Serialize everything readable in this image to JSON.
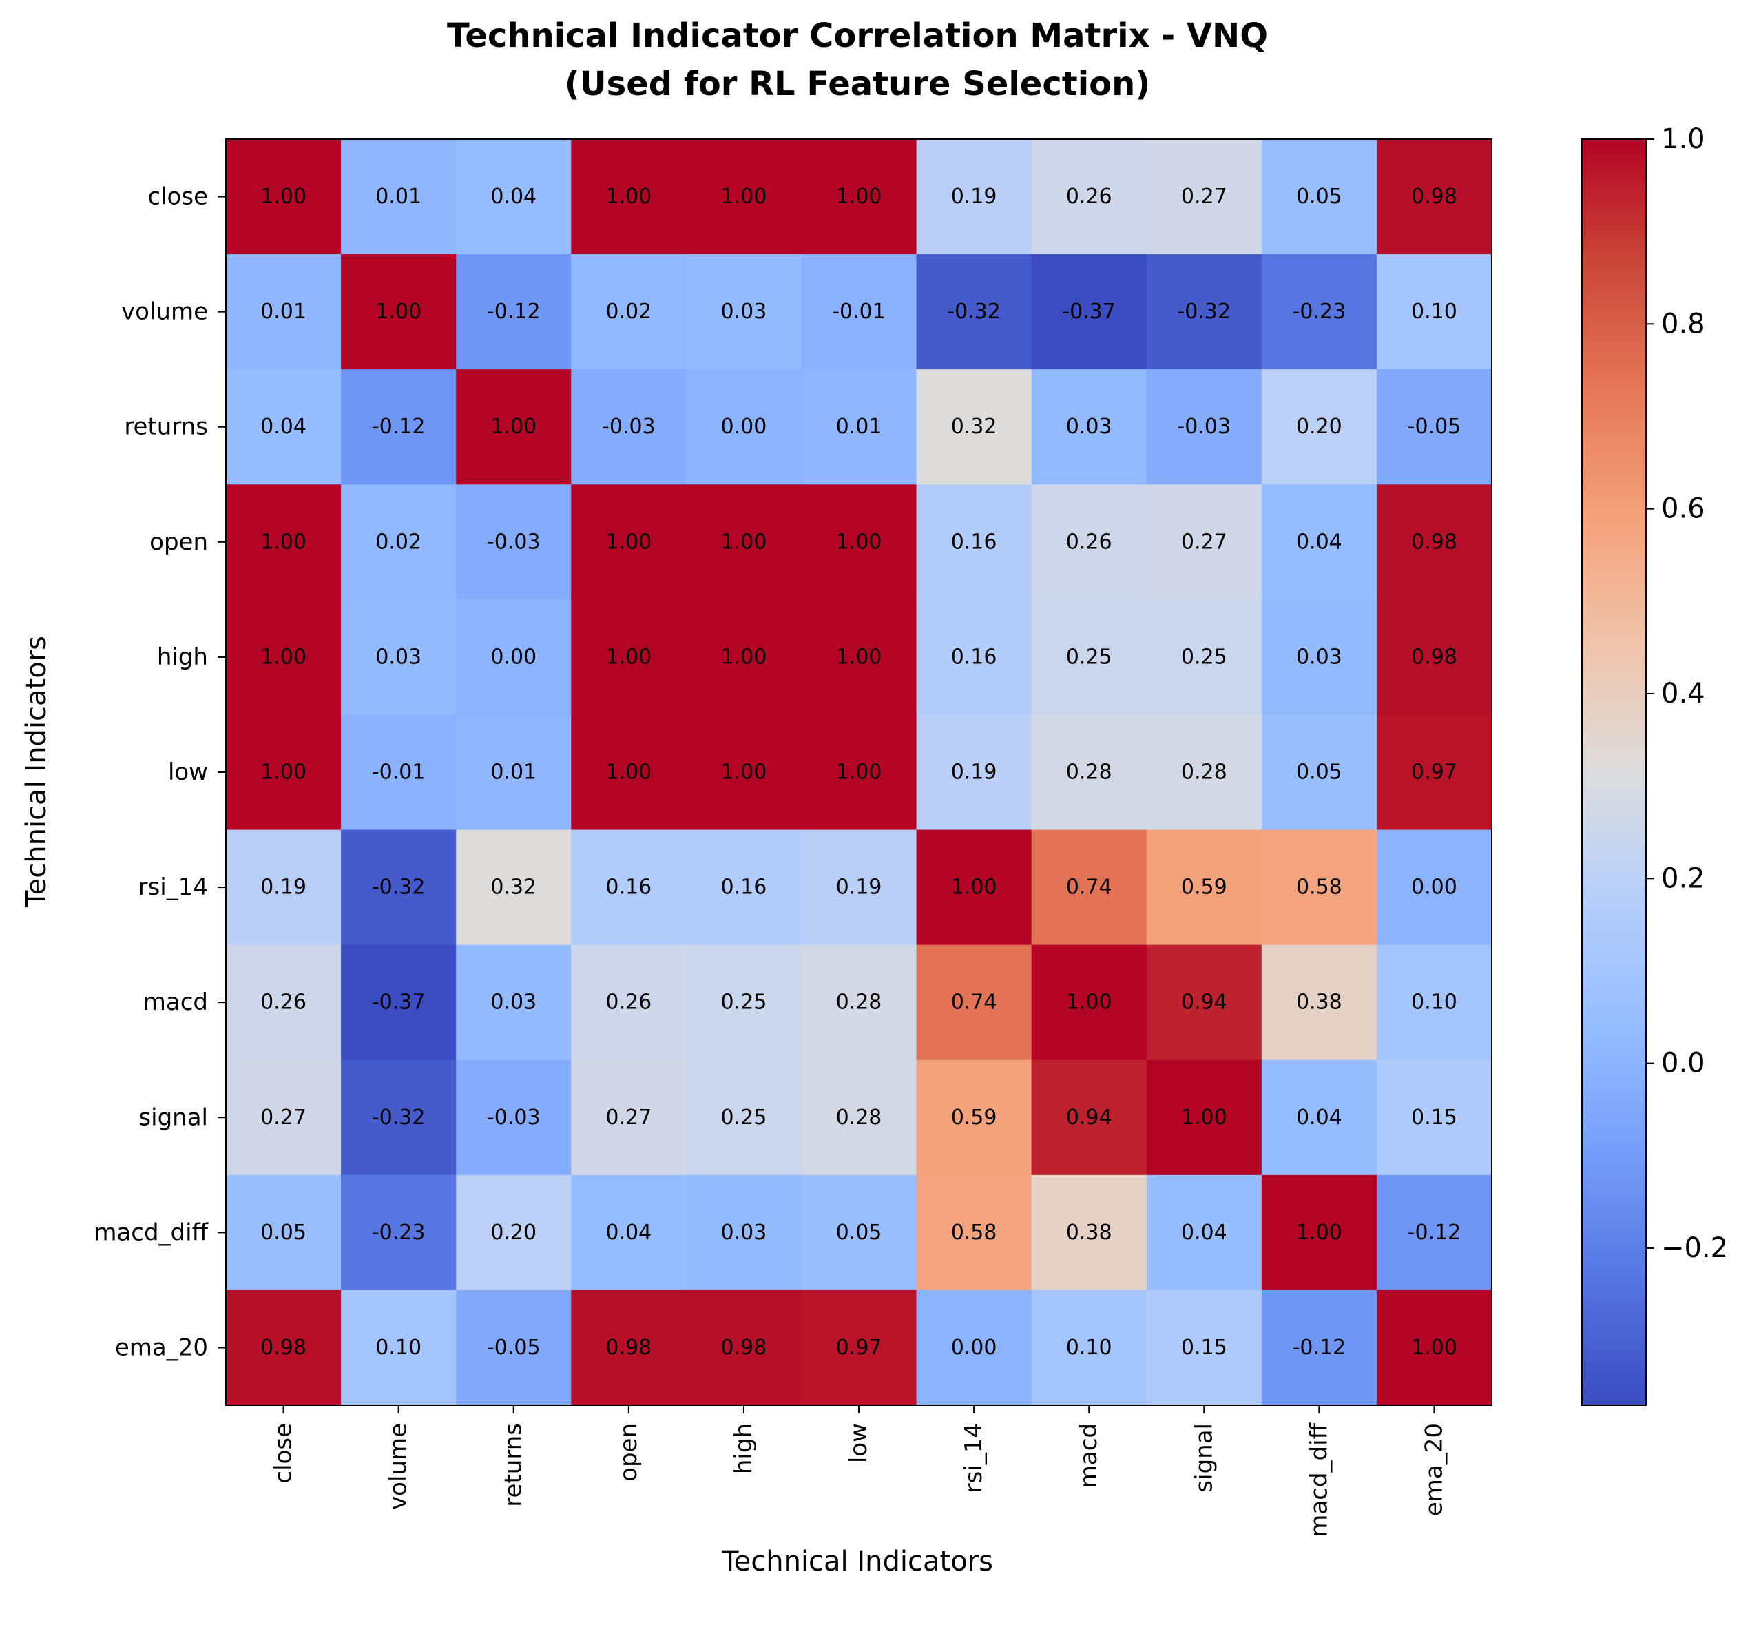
{
  "chart_data": {
    "type": "heatmap",
    "title": "Technical Indicator Correlation Matrix - VNQ",
    "subtitle": "(Used for RL Feature Selection)",
    "xlabel": "Technical Indicators",
    "ylabel": "Technical Indicators",
    "x_categories": [
      "close",
      "volume",
      "returns",
      "open",
      "high",
      "low",
      "rsi_14",
      "macd",
      "signal",
      "macd_diff",
      "ema_20"
    ],
    "y_categories": [
      "close",
      "volume",
      "returns",
      "open",
      "high",
      "low",
      "rsi_14",
      "macd",
      "signal",
      "macd_diff",
      "ema_20"
    ],
    "values": [
      [
        1.0,
        0.01,
        0.04,
        1.0,
        1.0,
        1.0,
        0.19,
        0.26,
        0.27,
        0.05,
        0.98
      ],
      [
        0.01,
        1.0,
        -0.12,
        0.02,
        0.03,
        -0.01,
        -0.32,
        -0.37,
        -0.32,
        -0.23,
        0.1
      ],
      [
        0.04,
        -0.12,
        1.0,
        -0.03,
        0.0,
        0.01,
        0.32,
        0.03,
        -0.03,
        0.2,
        -0.05
      ],
      [
        1.0,
        0.02,
        -0.03,
        1.0,
        1.0,
        1.0,
        0.16,
        0.26,
        0.27,
        0.04,
        0.98
      ],
      [
        1.0,
        0.03,
        0.0,
        1.0,
        1.0,
        1.0,
        0.16,
        0.25,
        0.25,
        0.03,
        0.98
      ],
      [
        1.0,
        -0.01,
        0.01,
        1.0,
        1.0,
        1.0,
        0.19,
        0.28,
        0.28,
        0.05,
        0.97
      ],
      [
        0.19,
        -0.32,
        0.32,
        0.16,
        0.16,
        0.19,
        1.0,
        0.74,
        0.59,
        0.58,
        0.0
      ],
      [
        0.26,
        -0.37,
        0.03,
        0.26,
        0.25,
        0.28,
        0.74,
        1.0,
        0.94,
        0.38,
        0.1
      ],
      [
        0.27,
        -0.32,
        -0.03,
        0.27,
        0.25,
        0.28,
        0.59,
        0.94,
        1.0,
        0.04,
        0.15
      ],
      [
        0.05,
        -0.23,
        0.2,
        0.04,
        0.03,
        0.05,
        0.58,
        0.38,
        0.04,
        1.0,
        -0.12
      ],
      [
        0.98,
        0.1,
        -0.05,
        0.98,
        0.98,
        0.97,
        0.0,
        0.1,
        0.15,
        -0.12,
        1.0
      ]
    ],
    "colorscale": "coolwarm",
    "color_range": [
      -0.37,
      1.0
    ],
    "colorbar_ticks": [
      1.0,
      0.8,
      0.6,
      0.4,
      0.2,
      0.0,
      -0.2
    ],
    "colorbar_tick_labels": [
      "1.0",
      "0.8",
      "0.6",
      "0.4",
      "0.2",
      "0.0",
      "−0.2"
    ],
    "legend_placement": "right",
    "grid": false
  }
}
